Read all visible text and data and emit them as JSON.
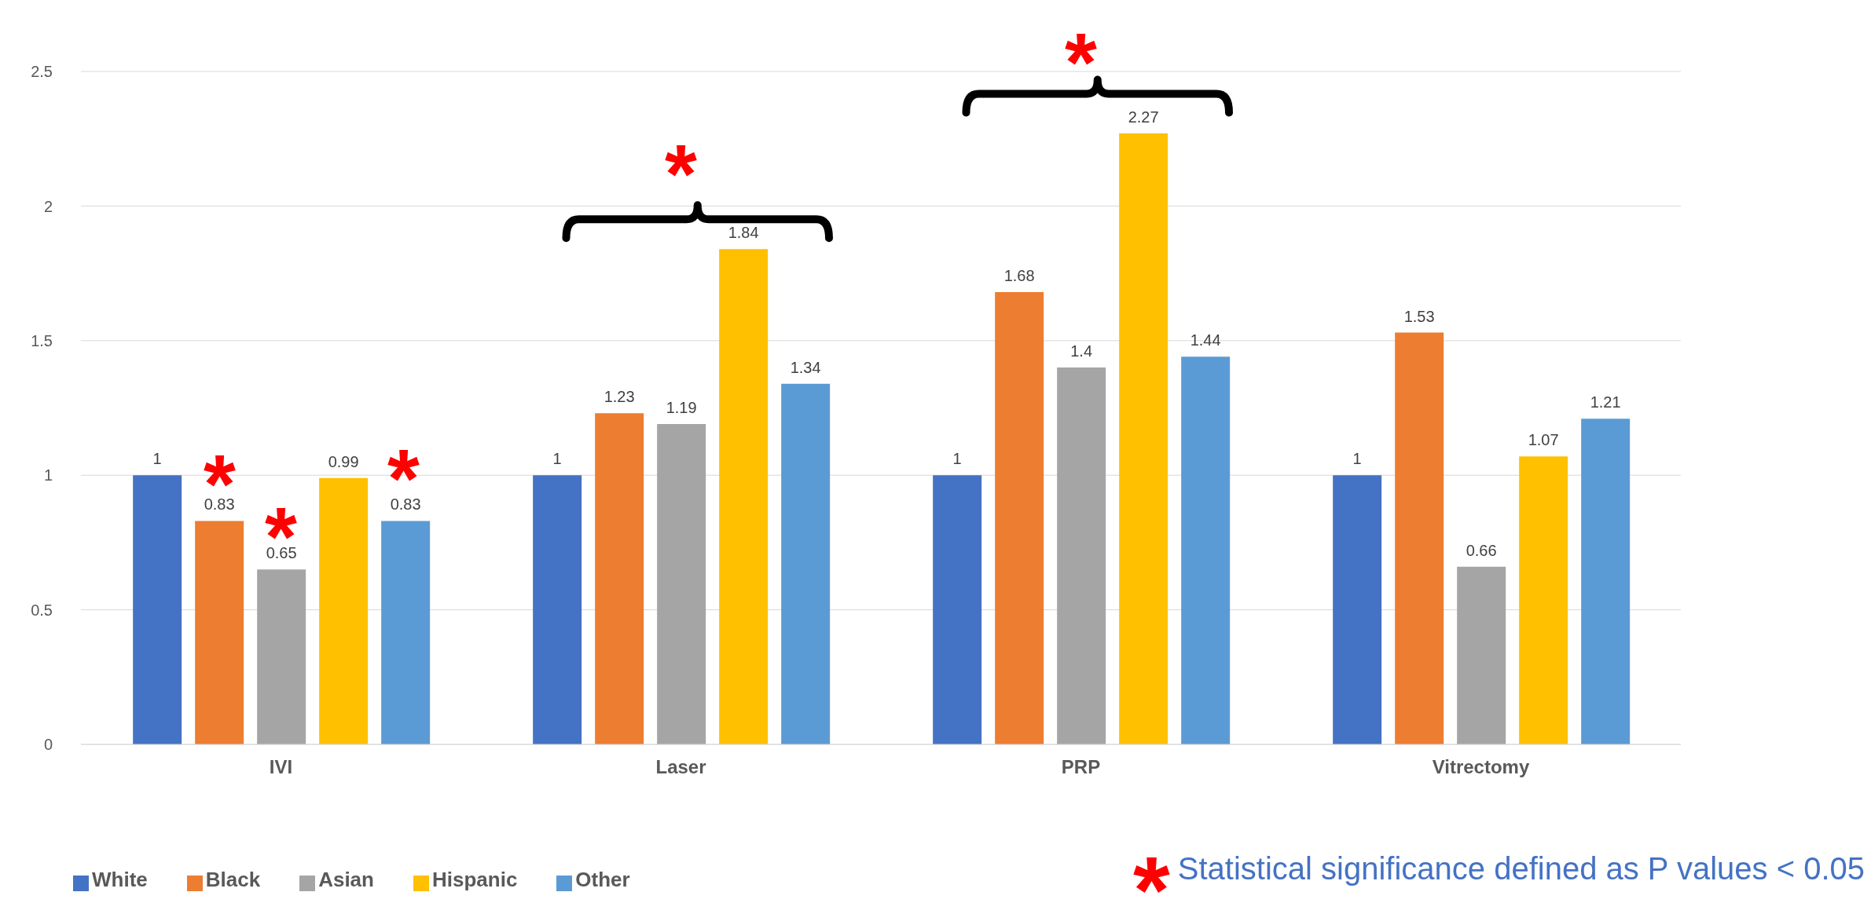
{
  "chart_data": {
    "type": "bar",
    "categories": [
      "IVI",
      "Laser",
      "PRP",
      "Vitrectomy"
    ],
    "series": [
      {
        "name": "White",
        "color": "#4472c4",
        "values": [
          1,
          1,
          1,
          1
        ]
      },
      {
        "name": "Black",
        "color": "#ed7d31",
        "values": [
          0.83,
          1.23,
          1.68,
          1.53
        ]
      },
      {
        "name": "Asian",
        "color": "#a5a5a5",
        "values": [
          0.65,
          1.19,
          1.4,
          0.66
        ]
      },
      {
        "name": "Hispanic",
        "color": "#ffc000",
        "values": [
          0.99,
          1.84,
          2.27,
          1.07
        ]
      },
      {
        "name": "Other",
        "color": "#5b9bd5",
        "values": [
          0.83,
          1.34,
          1.44,
          1.21
        ]
      }
    ],
    "ylim": [
      0,
      2.5
    ],
    "yticks": [
      0,
      0.5,
      1,
      1.5,
      2,
      2.5
    ],
    "grid": "y",
    "legend": "bottom left",
    "data_labels": true,
    "annotations": [
      "*",
      "*",
      "*",
      "*",
      "*",
      "*",
      "Statistical significance defined as P values < 0.05"
    ]
  }
}
